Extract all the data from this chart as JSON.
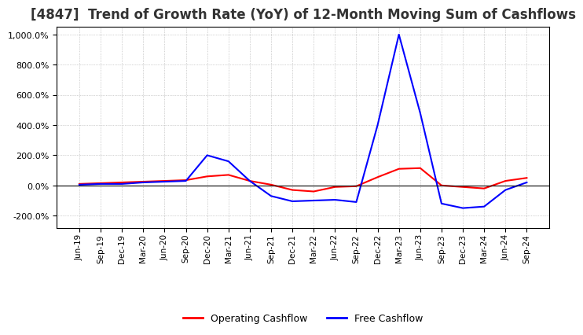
{
  "title": "[4847]  Trend of Growth Rate (YoY) of 12-Month Moving Sum of Cashflows",
  "title_fontsize": 12,
  "ylim": [
    -280,
    1050
  ],
  "yticks": [
    -200,
    0,
    200,
    400,
    600,
    800,
    1000
  ],
  "background_color": "#ffffff",
  "grid_color": "#aaaaaa",
  "legend_labels": [
    "Operating Cashflow",
    "Free Cashflow"
  ],
  "legend_colors": [
    "#ff0000",
    "#0000ff"
  ],
  "x_labels": [
    "Jun-19",
    "Sep-19",
    "Dec-19",
    "Mar-20",
    "Jun-20",
    "Sep-20",
    "Dec-20",
    "Mar-21",
    "Jun-21",
    "Sep-21",
    "Dec-21",
    "Mar-22",
    "Jun-22",
    "Sep-22",
    "Dec-22",
    "Mar-23",
    "Jun-23",
    "Sep-23",
    "Dec-23",
    "Mar-24",
    "Jun-24",
    "Sep-24"
  ],
  "operating_cashflow": [
    10,
    15,
    20,
    25,
    30,
    35,
    60,
    70,
    30,
    5,
    -30,
    -40,
    -10,
    -5,
    55,
    110,
    115,
    0,
    -10,
    -20,
    30,
    50
  ],
  "free_cashflow": [
    5,
    10,
    10,
    20,
    25,
    30,
    200,
    160,
    30,
    -70,
    -105,
    -100,
    -95,
    -110,
    400,
    1000,
    480,
    -120,
    -150,
    -140,
    -30,
    20
  ]
}
